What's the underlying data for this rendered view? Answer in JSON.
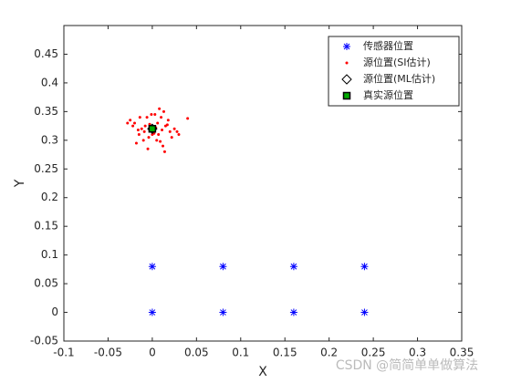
{
  "chart_data": {
    "type": "scatter",
    "xlabel": "X",
    "ylabel": "Y",
    "xlim": [
      -0.1,
      0.35
    ],
    "xticks": [
      -0.1,
      -0.05,
      0,
      0.05,
      0.1,
      0.15,
      0.2,
      0.25,
      0.3,
      0.35
    ],
    "ylim": [
      -0.05,
      0.5
    ],
    "yticks": [
      -0.05,
      0,
      0.05,
      0.1,
      0.15,
      0.2,
      0.25,
      0.3,
      0.35,
      0.4,
      0.45
    ],
    "legend": "northeast",
    "series": [
      {
        "name": "传感器位置",
        "color": "#0000ff",
        "marker": "asterisk",
        "x": [
          0,
          0.08,
          0.16,
          0.24,
          0,
          0.08,
          0.16,
          0.24
        ],
        "values": [
          0.08,
          0.08,
          0.08,
          0.08,
          0,
          0,
          0,
          0
        ]
      },
      {
        "name": "源位置(SI估计)",
        "color": "#ff0000",
        "marker": "dot",
        "x": [
          -0.02,
          -0.015,
          0.01,
          0.005,
          -0.008,
          0.02,
          0.012,
          -0.025,
          0.003,
          -0.004,
          0.015,
          0.008,
          -0.012,
          0.025,
          -0.018,
          0.0,
          0.006,
          -0.006,
          0.018,
          -0.01,
          0.04,
          0.03,
          -0.022,
          0.011,
          -0.003,
          0.009,
          -0.014,
          0.002,
          0.022,
          -0.009,
          0.014,
          -0.001,
          0.004,
          0.017,
          -0.016,
          0.007,
          -0.028,
          0.028,
          -0.005,
          0.013
        ],
        "values": [
          0.33,
          0.31,
          0.34,
          0.3,
          0.325,
          0.315,
          0.29,
          0.335,
          0.345,
          0.305,
          0.325,
          0.355,
          0.32,
          0.32,
          0.295,
          0.31,
          0.33,
          0.34,
          0.335,
          0.3,
          0.338,
          0.31,
          0.325,
          0.318,
          0.328,
          0.298,
          0.34,
          0.312,
          0.305,
          0.315,
          0.28,
          0.345,
          0.322,
          0.327,
          0.318,
          0.31,
          0.33,
          0.315,
          0.285,
          0.35
        ]
      },
      {
        "name": "源位置(ML估计)",
        "color": "#000000",
        "marker": "diamond",
        "x": [
          0
        ],
        "values": [
          0.32
        ]
      },
      {
        "name": "真实源位置",
        "color": "#00aa00",
        "marker": "square",
        "x": [
          0
        ],
        "values": [
          0.32
        ]
      }
    ],
    "watermark": "CSDN @简简单单做算法"
  }
}
